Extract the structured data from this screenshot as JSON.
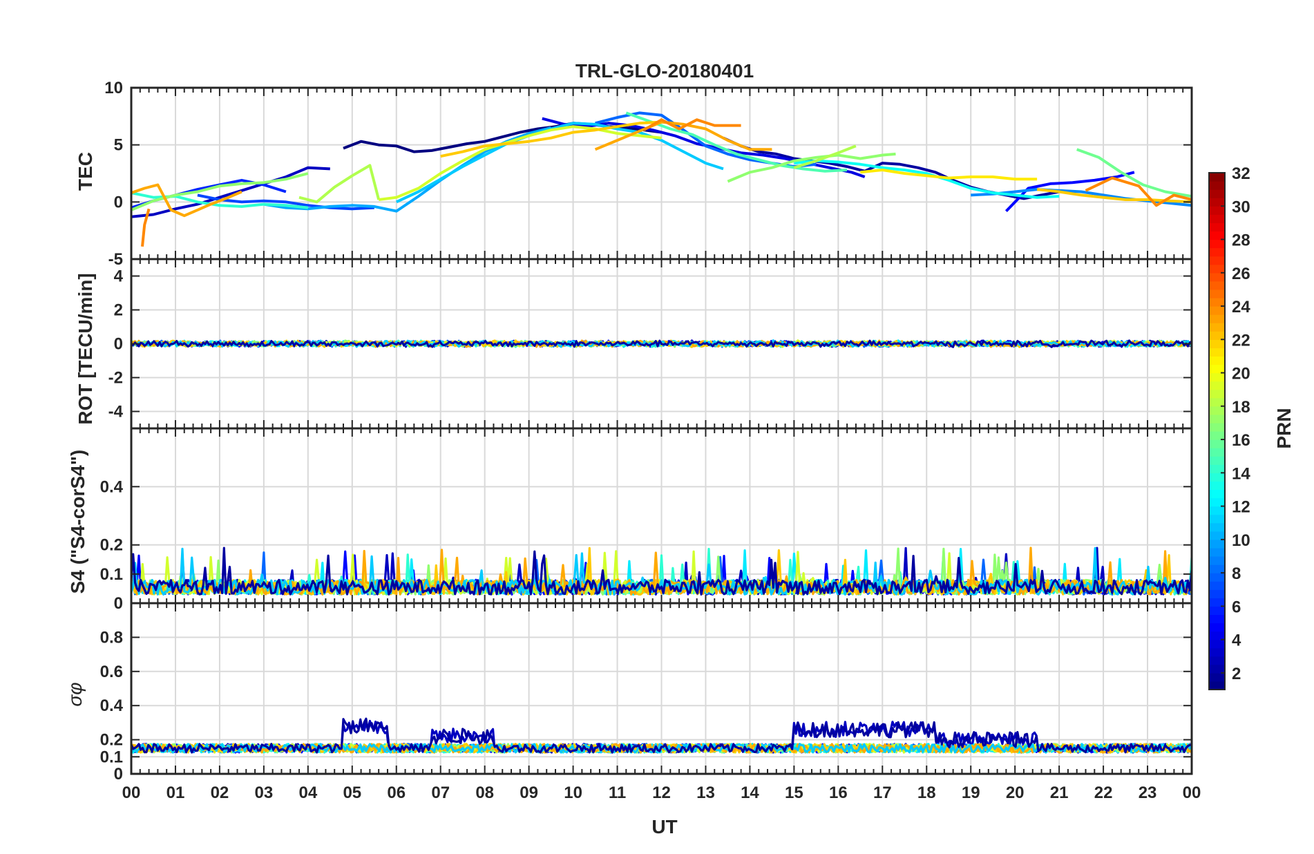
{
  "chart_data": {
    "type": "line",
    "title": "TRL-GLO-20180401",
    "xlabel": "UT",
    "x_ticks": [
      "00",
      "01",
      "02",
      "03",
      "04",
      "05",
      "06",
      "07",
      "08",
      "09",
      "10",
      "11",
      "12",
      "13",
      "14",
      "15",
      "16",
      "17",
      "18",
      "19",
      "20",
      "21",
      "22",
      "23",
      "00"
    ],
    "xlim": [
      0,
      24
    ],
    "panels": [
      {
        "name": "tec",
        "ylabel": "TEC",
        "ylim": [
          -5,
          10
        ],
        "yticks": [
          -5,
          0,
          5,
          10
        ],
        "ytick_labels": [
          "-5",
          "0",
          "5",
          "10"
        ],
        "series": [
          {
            "prn": 1,
            "x": [
              4.8,
              5.2,
              5.6,
              6.0,
              6.4,
              6.8,
              7.2,
              7.6,
              8.0,
              8.4,
              8.8,
              9.2,
              9.6,
              10.0,
              10.4,
              10.8,
              11.2,
              11.6,
              12.0
            ],
            "y": [
              4.7,
              5.3,
              5.0,
              4.9,
              4.4,
              4.5,
              4.8,
              5.1,
              5.3,
              5.7,
              6.1,
              6.4,
              6.6,
              6.9,
              6.8,
              6.6,
              6.5,
              6.3,
              6.1
            ]
          },
          {
            "prn": 2,
            "x": [
              13.4,
              13.8,
              14.2,
              14.6,
              15.0,
              15.4,
              15.8,
              16.2,
              16.6,
              17.0,
              17.4,
              17.8,
              18.2,
              18.6,
              19.0,
              19.4,
              19.8,
              20.2,
              20.6,
              21.0
            ],
            "y": [
              5.6,
              4.9,
              4.4,
              4.2,
              3.8,
              3.6,
              3.4,
              3.1,
              2.7,
              3.4,
              3.3,
              3.0,
              2.6,
              1.9,
              1.3,
              0.9,
              0.6,
              0.3,
              0.6,
              0.9
            ]
          },
          {
            "prn": 3,
            "x": [
              0.0,
              0.5,
              1.0,
              1.5,
              2.0,
              2.5,
              3.0,
              3.5,
              4.0,
              4.5
            ],
            "y": [
              -1.3,
              -1.1,
              -0.6,
              -0.2,
              0.4,
              1.0,
              1.6,
              2.2,
              3.0,
              2.9
            ]
          },
          {
            "prn": 4,
            "x": [
              9.3,
              9.8,
              10.3,
              10.8,
              11.3,
              11.8,
              12.3,
              12.8,
              13.3,
              13.8,
              14.3,
              14.8,
              15.3,
              15.8,
              16.3,
              16.6
            ],
            "y": [
              7.3,
              6.8,
              6.6,
              6.9,
              6.7,
              6.3,
              5.8,
              5.1,
              4.7,
              4.3,
              4.1,
              3.8,
              3.4,
              3.0,
              2.6,
              2.2
            ]
          },
          {
            "prn": 5,
            "x": [
              19.8,
              20.3,
              20.8,
              21.3,
              21.8,
              22.3,
              22.7
            ],
            "y": [
              -0.8,
              1.2,
              1.6,
              1.7,
              1.9,
              2.2,
              2.6
            ]
          },
          {
            "prn": 6,
            "x": [
              0.0,
              0.5,
              1.0,
              1.5,
              2.0,
              2.5,
              3.0,
              3.5
            ],
            "y": [
              -0.5,
              0.1,
              0.6,
              1.1,
              1.5,
              1.9,
              1.5,
              0.9
            ]
          },
          {
            "prn": 7,
            "x": [
              1.5,
              2.0,
              2.5,
              3.0,
              3.5,
              4.0,
              4.5,
              5.0,
              5.5
            ],
            "y": [
              0.6,
              0.2,
              0.0,
              0.1,
              0.0,
              -0.3,
              -0.5,
              -0.6,
              -0.5
            ]
          },
          {
            "prn": 8,
            "x": [
              10.5,
              11.0,
              11.5,
              12.0,
              12.5,
              13.0,
              13.5,
              14.0,
              14.5,
              15.0,
              15.5
            ],
            "y": [
              6.9,
              7.4,
              7.8,
              7.6,
              6.3,
              4.9,
              4.2,
              3.7,
              3.4,
              3.1,
              3.3
            ]
          },
          {
            "prn": 9,
            "x": [
              19.0,
              19.5,
              20.0,
              20.5,
              21.0,
              21.5,
              22.0,
              22.5,
              23.0,
              23.5,
              24.0
            ],
            "y": [
              0.6,
              0.7,
              0.9,
              1.1,
              1.0,
              0.9,
              0.6,
              0.3,
              0.1,
              -0.1,
              -0.3
            ]
          },
          {
            "prn": 10,
            "x": [
              3.0,
              3.5,
              4.0,
              4.5,
              5.0,
              5.5,
              6.0,
              6.5,
              7.0,
              7.5,
              8.0,
              8.5,
              9.0,
              9.5
            ],
            "y": [
              -0.2,
              -0.5,
              -0.6,
              -0.4,
              -0.3,
              -0.4,
              -0.8,
              0.5,
              1.9,
              3.2,
              4.4,
              5.3,
              6.0,
              6.5
            ]
          },
          {
            "prn": 11,
            "x": [
              6.0,
              6.5,
              7.0,
              7.5,
              8.0,
              8.5,
              9.0,
              9.5,
              10.0,
              10.5,
              11.0,
              11.5,
              12.0,
              12.5,
              13.0,
              13.4
            ],
            "y": [
              0.0,
              0.9,
              2.0,
              3.1,
              4.1,
              5.1,
              5.8,
              6.4,
              6.9,
              6.8,
              6.4,
              6.1,
              5.4,
              4.4,
              3.4,
              2.9
            ]
          },
          {
            "prn": 13,
            "x": [
              15.0,
              15.5,
              16.0,
              16.5,
              17.0,
              17.5,
              18.0,
              18.5,
              19.0,
              19.5,
              20.0,
              20.5,
              21.0
            ],
            "y": [
              3.4,
              3.6,
              3.5,
              3.3,
              3.0,
              2.8,
              2.5,
              1.9,
              1.2,
              0.8,
              0.6,
              0.4,
              0.5
            ]
          },
          {
            "prn": 14,
            "x": [
              0.0,
              0.5,
              1.0,
              1.5,
              2.0,
              2.5,
              3.0,
              3.5,
              4.0
            ],
            "y": [
              0.8,
              0.4,
              0.5,
              0.0,
              -0.3,
              -0.4,
              -0.2,
              -0.3,
              -0.5
            ]
          },
          {
            "prn": 15,
            "x": [
              11.2,
              11.7,
              12.2,
              12.7,
              13.2,
              13.7,
              14.2,
              14.7,
              15.2,
              15.7,
              16.2
            ],
            "y": [
              7.8,
              7.1,
              6.4,
              5.9,
              5.0,
              4.2,
              3.7,
              3.2,
              2.9,
              2.7,
              2.8
            ]
          },
          {
            "prn": 16,
            "x": [
              21.4,
              21.9,
              22.4,
              22.9,
              23.4,
              24.0
            ],
            "y": [
              4.6,
              3.9,
              2.6,
              1.5,
              0.9,
              0.5
            ]
          },
          {
            "prn": 17,
            "x": [
              0.0,
              0.5,
              1.0,
              1.5,
              2.0,
              2.5,
              3.0,
              3.5,
              4.0
            ],
            "y": [
              -0.7,
              0.1,
              0.6,
              0.9,
              1.4,
              1.6,
              1.7,
              2.0,
              2.5
            ]
          },
          {
            "prn": 17,
            "x": [
              13.5,
              14.0,
              14.5,
              15.0,
              15.5,
              16.0,
              16.5,
              17.0,
              17.3
            ],
            "y": [
              1.8,
              2.6,
              3.0,
              3.6,
              3.9,
              4.1,
              3.8,
              4.1,
              4.2
            ]
          },
          {
            "prn": 18,
            "x": [
              3.8,
              4.2,
              4.6,
              5.0,
              5.4,
              5.6
            ],
            "y": [
              0.4,
              0.0,
              1.3,
              2.3,
              3.2,
              0.2
            ]
          },
          {
            "prn": 18,
            "x": [
              15.0,
              15.5,
              16.0,
              16.4
            ],
            "y": [
              3.0,
              3.6,
              4.3,
              4.9
            ]
          },
          {
            "prn": 19,
            "x": [
              5.6,
              6.0,
              6.5,
              7.0,
              7.5,
              8.0,
              8.5,
              9.0,
              9.5,
              10.0,
              10.5,
              11.0,
              11.5,
              12.0
            ],
            "y": [
              0.2,
              0.4,
              1.2,
              2.5,
              3.6,
              4.6,
              5.2,
              5.8,
              6.3,
              6.6,
              6.4,
              6.0,
              5.8,
              5.6
            ]
          },
          {
            "prn": 21,
            "x": [
              16.5,
              17.0,
              17.5,
              18.0,
              18.5,
              19.0,
              19.5,
              20.0,
              20.5
            ],
            "y": [
              2.6,
              2.8,
              2.5,
              2.3,
              2.1,
              2.2,
              2.2,
              2.0,
              2.0
            ]
          },
          {
            "prn": 22,
            "x": [
              7.0,
              7.5,
              8.0,
              8.5,
              9.0,
              9.5,
              10.0,
              10.5,
              11.0,
              11.5,
              12.0
            ],
            "y": [
              4.0,
              4.4,
              4.9,
              5.1,
              5.3,
              5.6,
              6.1,
              6.3,
              6.6,
              6.9,
              7.0
            ]
          },
          {
            "prn": 22,
            "x": [
              20.5,
              21.0,
              21.5,
              22.0,
              22.5,
              23.0,
              23.5,
              24.0
            ],
            "y": [
              1.1,
              0.9,
              0.6,
              0.4,
              0.2,
              0.2,
              0.1,
              0.0
            ]
          },
          {
            "prn": 23,
            "x": [
              0.0,
              0.3,
              0.6,
              0.9,
              1.2,
              1.5,
              1.8,
              2.2,
              2.5
            ],
            "y": [
              0.8,
              1.2,
              1.5,
              -0.7,
              -1.2,
              -0.7,
              -0.2,
              0.4,
              0.9
            ]
          },
          {
            "prn": 23,
            "x": [
              10.5,
              11.0,
              11.5,
              12.0,
              12.5,
              13.0,
              13.5,
              14.0,
              14.5
            ],
            "y": [
              4.6,
              5.4,
              6.2,
              7.0,
              6.8,
              6.4,
              5.4,
              4.6,
              4.6
            ]
          },
          {
            "prn": 24,
            "x": [
              0.25,
              0.3,
              0.4
            ],
            "y": [
              -3.9,
              -2.0,
              -0.6
            ]
          },
          {
            "prn": 24,
            "x": [
              11.6,
              12.0,
              12.4,
              12.8,
              13.2,
              13.8
            ],
            "y": [
              6.3,
              7.2,
              6.4,
              7.2,
              6.7,
              6.7
            ]
          },
          {
            "prn": 24,
            "x": [
              21.6,
              22.2,
              22.8,
              23.2,
              23.6,
              24.0
            ],
            "y": [
              1.0,
              2.1,
              1.4,
              -0.3,
              0.6,
              0.2
            ]
          }
        ]
      },
      {
        "name": "rot",
        "ylabel": "ROT [TECU/min]",
        "ylim": [
          -5,
          5
        ],
        "yticks": [
          -4,
          -2,
          0,
          2,
          4
        ],
        "ytick_labels": [
          "-4",
          "-2",
          "0",
          "2",
          "4"
        ],
        "band_center": 0.0,
        "band_amplitude": 0.2
      },
      {
        "name": "s4",
        "ylabel": "S4 (\"S4-corS4\")",
        "ylim": [
          0,
          0.6
        ],
        "yticks": [
          0,
          0.1,
          0.2,
          0.4
        ],
        "ytick_labels": [
          "0",
          "0.1",
          "0.2",
          "0.4"
        ],
        "baseline": 0.03,
        "spike_max": 0.19
      },
      {
        "name": "sigma_phi",
        "ylabel": "σφ",
        "ylim": [
          0,
          1.0
        ],
        "yticks": [
          0,
          0.1,
          0.2,
          0.4,
          0.6,
          0.8
        ],
        "ytick_labels": [
          "0",
          "0.1",
          "0.2",
          "0.4",
          "0.6",
          "0.8"
        ],
        "baseline": 0.15,
        "elevated_intervals": [
          {
            "x": [
              4.8,
              5.8
            ],
            "level": 0.28
          },
          {
            "x": [
              6.8,
              8.2
            ],
            "level": 0.22
          },
          {
            "x": [
              15.0,
              18.2
            ],
            "level": 0.26
          },
          {
            "x": [
              18.2,
              20.5
            ],
            "level": 0.2
          }
        ]
      }
    ],
    "colorbar": {
      "label": "PRN",
      "range": [
        1,
        32
      ],
      "ticks": [
        2,
        4,
        6,
        8,
        10,
        12,
        14,
        16,
        18,
        20,
        22,
        24,
        26,
        28,
        30,
        32
      ],
      "tick_labels": [
        "2",
        "4",
        "6",
        "8",
        "10",
        "12",
        "14",
        "16",
        "18",
        "20",
        "22",
        "24",
        "26",
        "28",
        "30",
        "32"
      ],
      "colormap": "jet"
    }
  }
}
